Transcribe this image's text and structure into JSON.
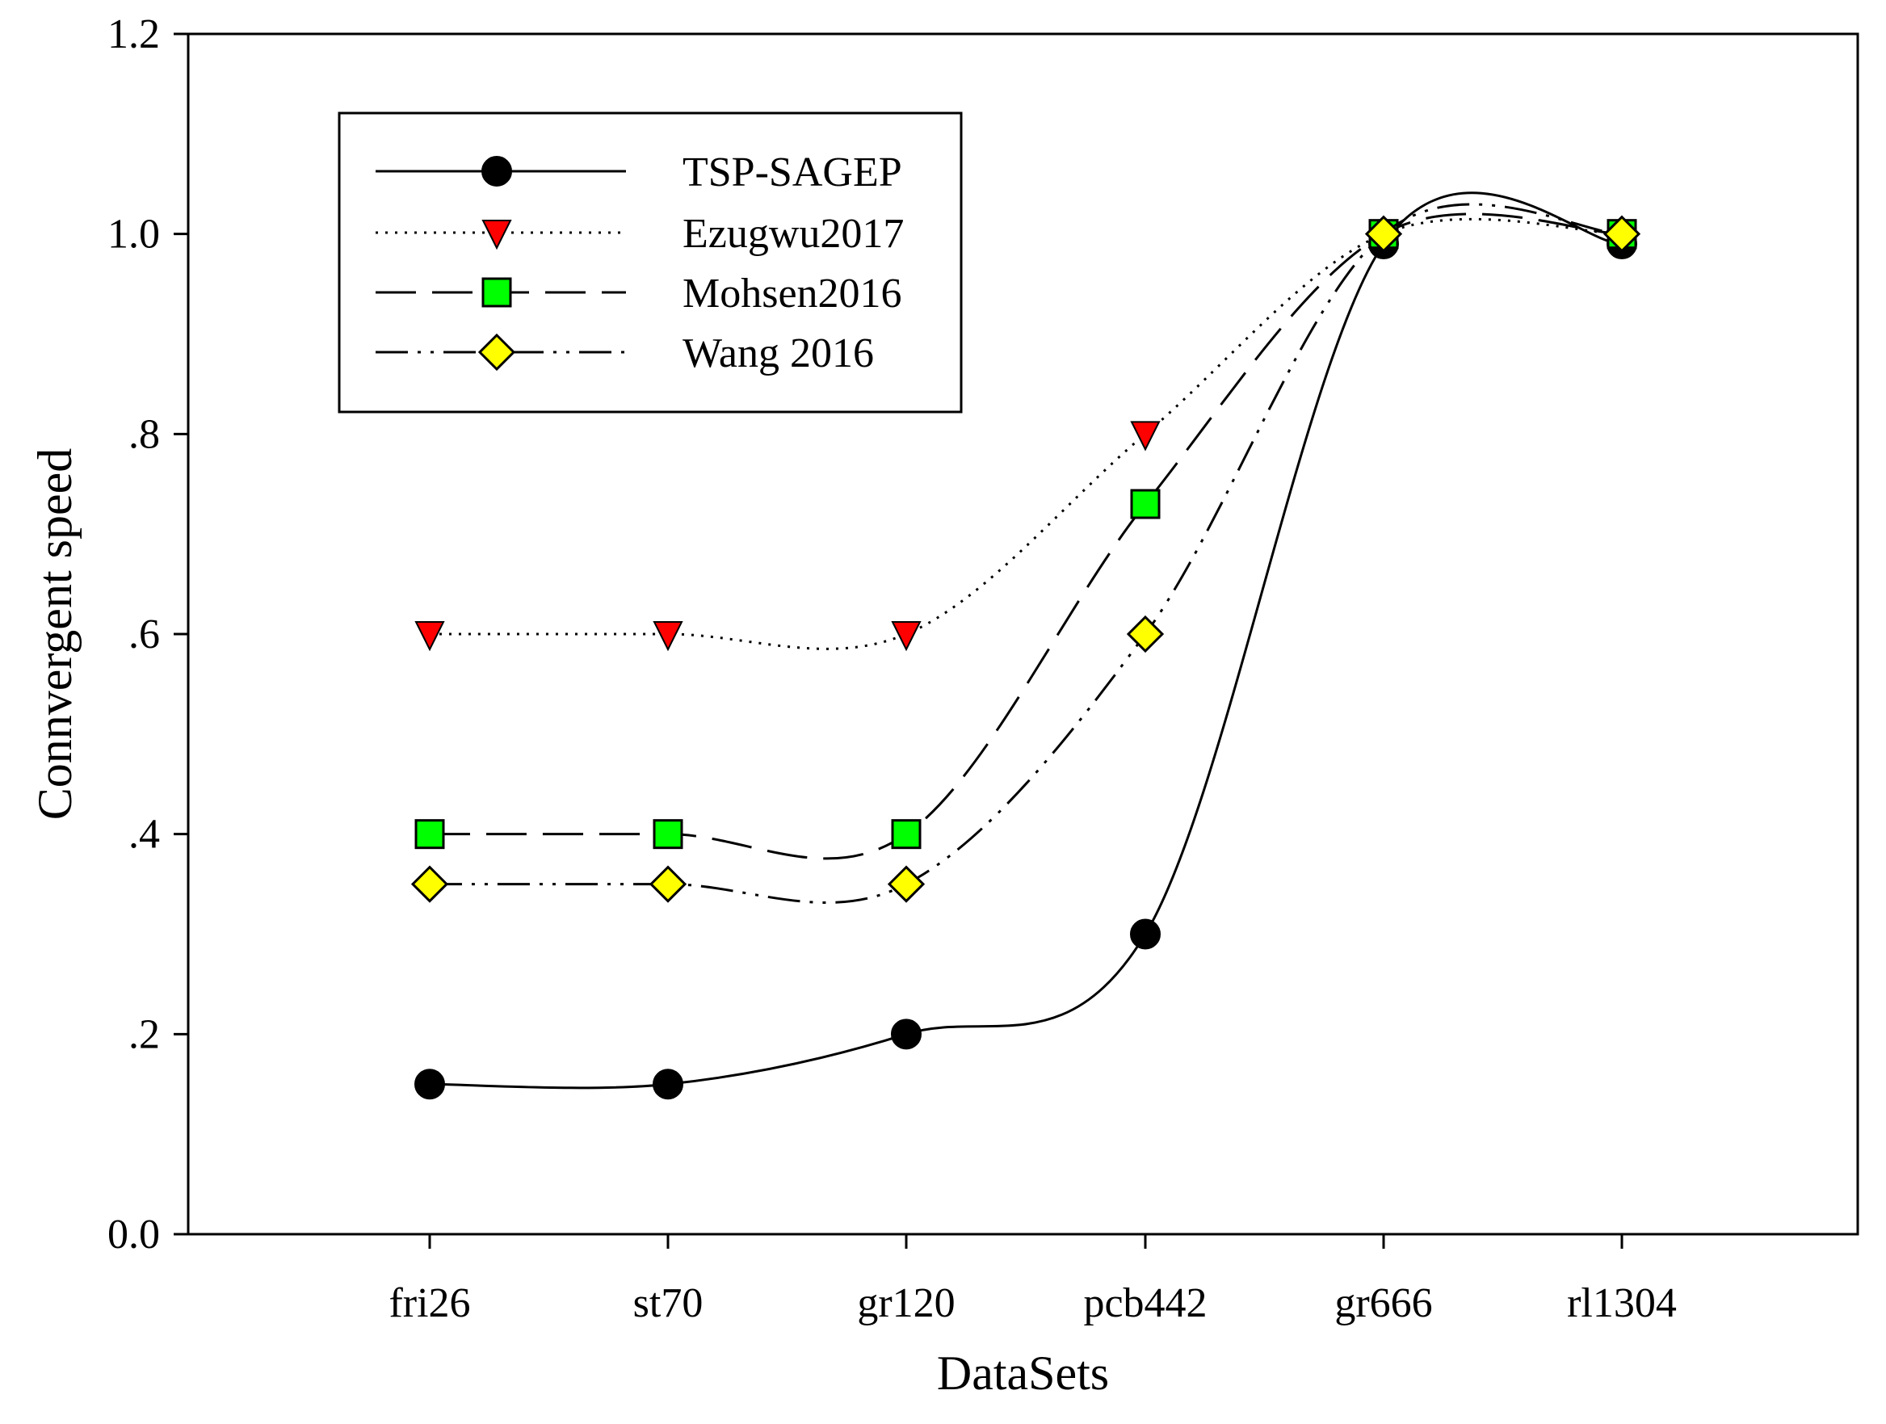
{
  "chart_data": {
    "type": "line",
    "title": "",
    "xlabel": "DataSets",
    "ylabel": "Connvergent speed",
    "categories": [
      "fri26",
      "st70",
      "gr120",
      "pcb442",
      "gr666",
      "rl1304"
    ],
    "ylim": [
      0.0,
      1.2
    ],
    "yticks": [
      0.0,
      0.2,
      0.4,
      0.6,
      0.8,
      1.0,
      1.2
    ],
    "ytick_labels": [
      "0.0",
      ".2",
      ".4",
      ".6",
      ".8",
      "1.0",
      "1.2"
    ],
    "grid": false,
    "legend_position": "top-left",
    "series": [
      {
        "name": "TSP-SAGEP",
        "values": [
          0.15,
          0.15,
          0.2,
          0.3,
          0.99,
          0.99
        ],
        "line_style": "solid",
        "marker": "circle",
        "marker_color": "#000000"
      },
      {
        "name": "Ezugwu2017",
        "values": [
          0.6,
          0.6,
          0.6,
          0.8,
          1.0,
          1.0
        ],
        "line_style": "dotted",
        "marker": "triangle-down",
        "marker_color": "#ff0000"
      },
      {
        "name": "Mohsen2016",
        "values": [
          0.4,
          0.4,
          0.4,
          0.73,
          1.0,
          1.0
        ],
        "line_style": "dashed",
        "marker": "square",
        "marker_color": "#00ff00"
      },
      {
        "name": "Wang 2016",
        "values": [
          0.35,
          0.35,
          0.35,
          0.6,
          1.0,
          1.0
        ],
        "line_style": "dash-dot-dot",
        "marker": "diamond",
        "marker_color": "#ffff00"
      }
    ]
  }
}
